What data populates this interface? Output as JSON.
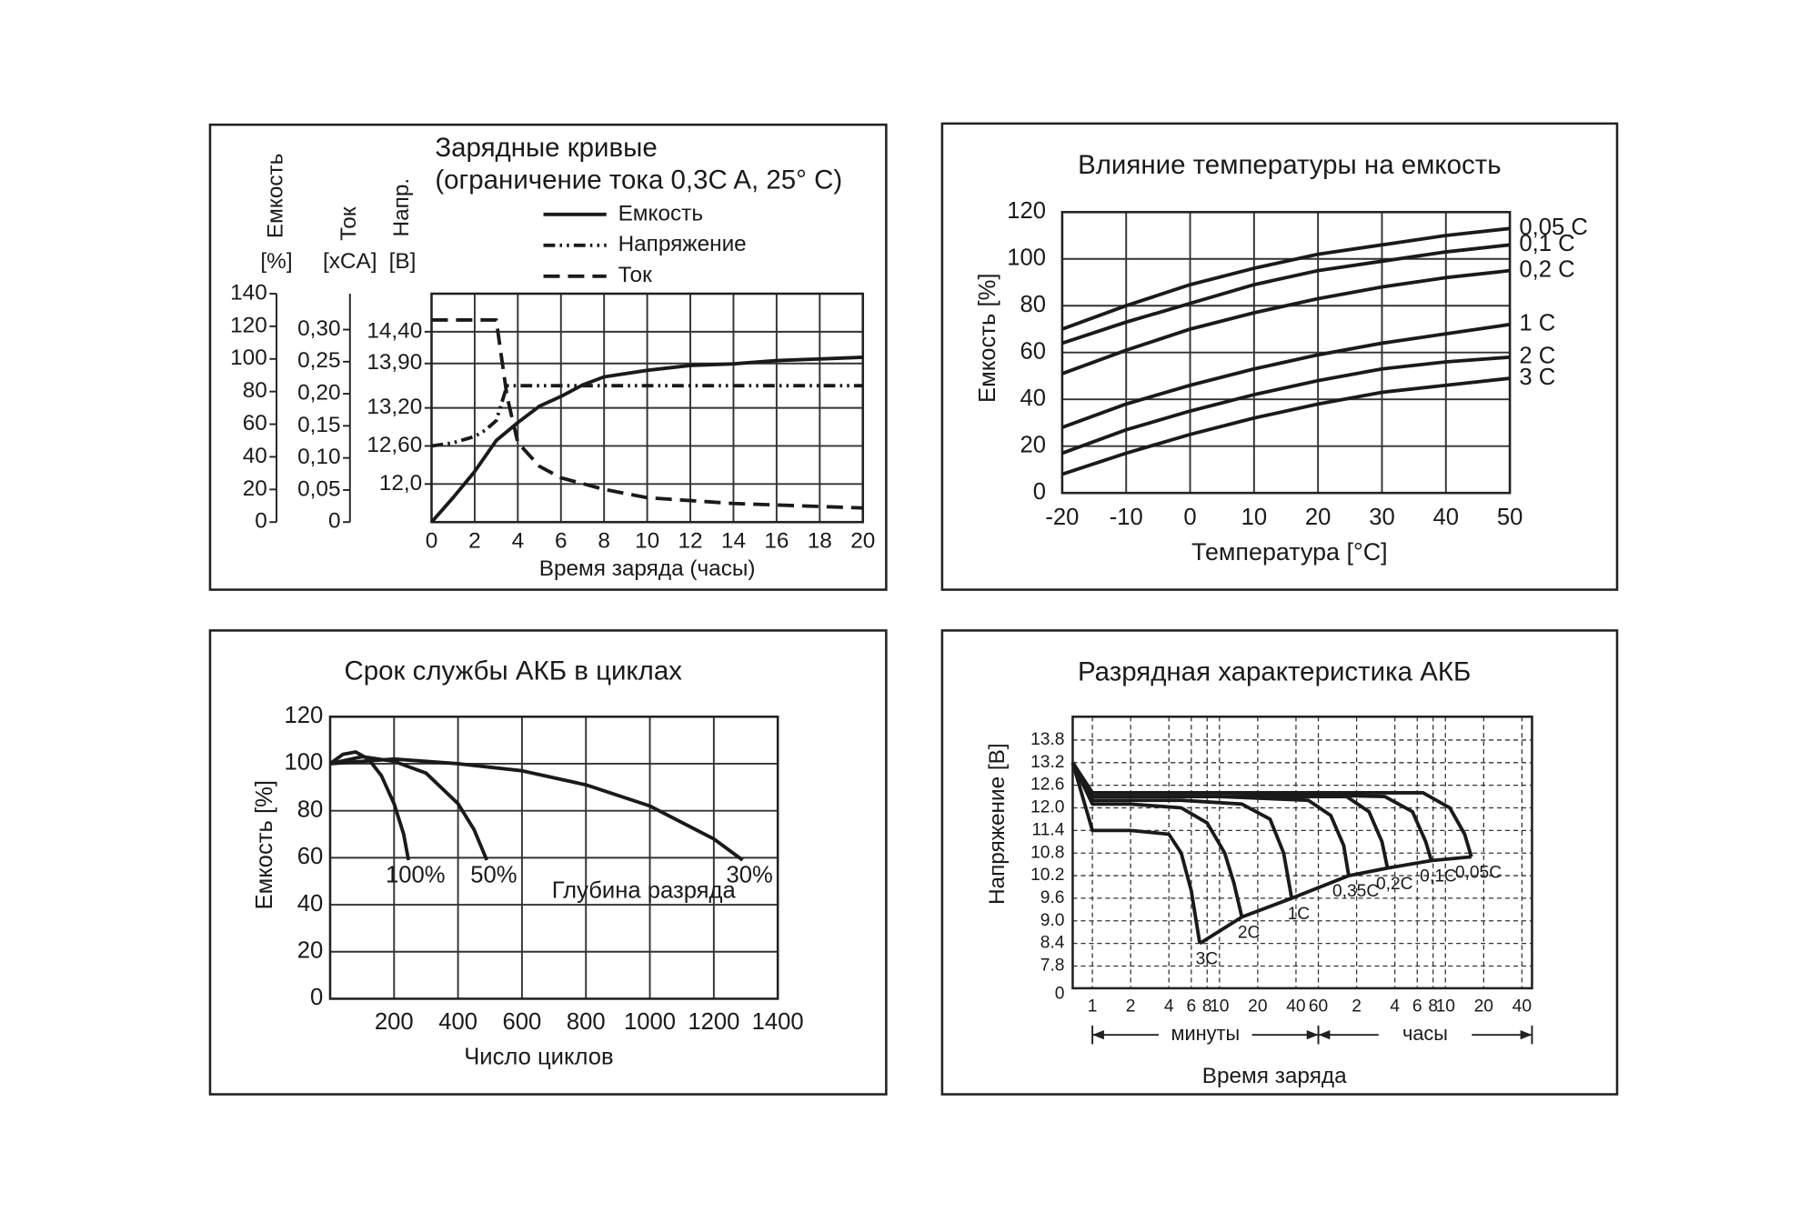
{
  "chart_data": [
    {
      "type": "line",
      "title": "Зарядные кривые",
      "subtitle": "(ограничение тока 0,3C A, 25° C)",
      "xlabel": "Время заряда (часы)",
      "xlim": [
        0,
        20
      ],
      "xticks": [
        0,
        2,
        4,
        6,
        8,
        10,
        12,
        14,
        16,
        18,
        20
      ],
      "ylabel": "Емкость",
      "yunit": "[%]",
      "ylim": [
        0,
        140
      ],
      "yticks": [
        0,
        20,
        40,
        60,
        80,
        100,
        120,
        140
      ],
      "y2label": "Ток",
      "y2unit": "[xCA]",
      "y2lim": [
        0,
        0.356
      ],
      "y2ticks": [
        0,
        {
          "value": 0.05,
          "label": "0,05"
        },
        {
          "value": 0.1,
          "label": "0,10"
        },
        {
          "value": 0.15,
          "label": "0,15"
        },
        {
          "value": 0.2,
          "label": "0,20"
        },
        {
          "value": 0.25,
          "label": "0,25"
        },
        {
          "value": 0.3,
          "label": "0,30"
        }
      ],
      "y3label": "Напр.",
      "y3unit": "[B]",
      "y3lim": [
        11.4,
        15.0
      ],
      "y3ticks": [
        {
          "value": 12,
          "label": "12,0"
        },
        {
          "value": 12.6,
          "label": "12,60"
        },
        {
          "value": 13.2,
          "label": "13,20"
        },
        {
          "value": 13.9,
          "label": "13,90"
        },
        {
          "value": 14.4,
          "label": "14,40"
        }
      ],
      "grid": true,
      "grid_ticks": "y3ticks",
      "legend": "top",
      "series": [
        {
          "name": "Емкость",
          "color": "#1a1a1a",
          "dash": "solid",
          "x": [
            0,
            1,
            2,
            3,
            4,
            5,
            6,
            7,
            8,
            10,
            12,
            14,
            16,
            18,
            20
          ],
          "values": [
            0,
            15,
            31,
            50,
            61,
            71,
            77,
            84,
            89,
            93,
            96,
            97,
            99,
            100,
            101
          ]
        },
        {
          "name": "Напряжение",
          "color": "#1a1a1a",
          "dash": "dash-dot-dot",
          "axis": "y3",
          "x": [
            0,
            1,
            2,
            2.5,
            3,
            3.5,
            4,
            8,
            12,
            16,
            20
          ],
          "values": [
            12.6,
            12.65,
            12.75,
            12.85,
            13.0,
            13.55,
            13.55,
            13.55,
            13.55,
            13.55,
            13.55
          ]
        },
        {
          "name": "Ток",
          "color": "#1a1a1a",
          "dash": "dashed",
          "axis": "y2",
          "x": [
            0,
            1,
            2,
            3,
            3.5,
            4,
            5,
            6,
            8,
            10,
            14,
            20
          ],
          "values": [
            0.315,
            0.315,
            0.315,
            0.315,
            0.196,
            0.124,
            0.087,
            0.069,
            0.051,
            0.038,
            0.029,
            0.022
          ]
        }
      ]
    },
    {
      "type": "line",
      "title": "Влияние температуры на емкость",
      "xlabel": "Температура [°C]",
      "ylabel": "Емкость [%]",
      "xlim": [
        -20,
        50
      ],
      "xticks": [
        -20,
        -10,
        0,
        10,
        20,
        30,
        40,
        50
      ],
      "ylim": [
        0,
        120
      ],
      "yticks": [
        0,
        20,
        40,
        60,
        80,
        100,
        120
      ],
      "grid": true,
      "x": [
        -20,
        -10,
        0,
        10,
        20,
        30,
        40,
        50
      ],
      "series": [
        {
          "name": "0,05 C",
          "color": "#1a1a1a",
          "values": [
            70,
            80,
            89,
            96,
            102,
            106,
            110,
            113
          ]
        },
        {
          "name": "0,1 C",
          "color": "#1a1a1a",
          "values": [
            64,
            73,
            81,
            89,
            95,
            99,
            103,
            106
          ]
        },
        {
          "name": "0,2 C",
          "color": "#1a1a1a",
          "values": [
            51,
            61,
            70,
            77,
            83,
            88,
            92,
            95
          ]
        },
        {
          "name": "1 C",
          "color": "#1a1a1a",
          "values": [
            28,
            38,
            46,
            53,
            59,
            64,
            68,
            72
          ]
        },
        {
          "name": "2 C",
          "color": "#1a1a1a",
          "values": [
            17,
            27,
            35,
            42,
            48,
            53,
            56,
            58
          ]
        },
        {
          "name": "3 C",
          "color": "#1a1a1a",
          "values": [
            8,
            17,
            25,
            32,
            38,
            43,
            46,
            49
          ]
        }
      ]
    },
    {
      "type": "line",
      "title": "Срок службы АКБ в циклах",
      "xlabel": "Число циклов",
      "ylabel": "Емкость [%]",
      "xlim": [
        0,
        1400
      ],
      "xticks": [
        200,
        400,
        600,
        800,
        1000,
        1200,
        1400
      ],
      "ylim": [
        0,
        120
      ],
      "yticks": [
        0,
        20,
        40,
        60,
        80,
        100,
        120
      ],
      "grid": true,
      "annotation": "Глубина разряда",
      "series": [
        {
          "name": "100%",
          "color": "#1a1a1a",
          "x": [
            0,
            40,
            80,
            120,
            160,
            200,
            230,
            245
          ],
          "values": [
            100,
            104,
            105,
            102,
            95,
            83,
            70,
            59
          ]
        },
        {
          "name": "50%",
          "color": "#1a1a1a",
          "x": [
            0,
            100,
            200,
            300,
            400,
            450,
            490
          ],
          "values": [
            100,
            103,
            101,
            96,
            83,
            72,
            59
          ]
        },
        {
          "name": "30%",
          "color": "#1a1a1a",
          "x": [
            0,
            200,
            400,
            600,
            800,
            1000,
            1200,
            1290
          ],
          "values": [
            100,
            102,
            100,
            97,
            91,
            82,
            68,
            59
          ]
        }
      ]
    },
    {
      "type": "line",
      "title": "Разрядная характеристика АКБ",
      "xlabel": "Время заряда",
      "ylabel": "Напряжение [В]",
      "xlog": true,
      "xlim": [
        0.7,
        2880
      ],
      "xticks": [
        1,
        2,
        4,
        6,
        8,
        10,
        20,
        40,
        60,
        {
          "value": 120,
          "label": "2"
        },
        {
          "value": 240,
          "label": "4"
        },
        {
          "value": 360,
          "label": "6"
        },
        {
          "value": 480,
          "label": "8"
        },
        {
          "value": 600,
          "label": "10"
        },
        {
          "value": 1200,
          "label": "20"
        },
        {
          "value": 2400,
          "label": "40"
        }
      ],
      "x_groups": [
        "минуты",
        "часы"
      ],
      "ylim": [
        7.21,
        14.42
      ],
      "yticks": [
        7.8,
        8.4,
        {
          "value": 9,
          "label": "9.0"
        },
        9.6,
        10.2,
        10.8,
        11.4,
        {
          "value": 12,
          "label": "12.0"
        },
        12.6,
        13.2,
        13.8
      ],
      "y_origin_label": "0",
      "grid": "dashed",
      "series": [
        {
          "name": "3C",
          "color": "#1a1a1a",
          "x": [
            0.7,
            1,
            2,
            4,
            5,
            6,
            7
          ],
          "values": [
            13.2,
            11.4,
            11.4,
            11.3,
            10.8,
            9.8,
            8.4
          ]
        },
        {
          "name": "2C",
          "color": "#1a1a1a",
          "x": [
            0.7,
            1,
            2,
            5,
            8,
            11,
            13,
            15
          ],
          "values": [
            13.2,
            12.1,
            12.1,
            12.0,
            11.6,
            10.8,
            10.0,
            9.1
          ]
        },
        {
          "name": "1C",
          "color": "#1a1a1a",
          "x": [
            0.7,
            1,
            5,
            15,
            25,
            32,
            37
          ],
          "values": [
            13.2,
            12.2,
            12.2,
            12.1,
            11.7,
            10.8,
            9.6
          ]
        },
        {
          "name": "0,35C",
          "color": "#1a1a1a",
          "x": [
            0.7,
            1,
            10,
            50,
            75,
            95,
            104
          ],
          "values": [
            13.2,
            12.3,
            12.3,
            12.2,
            11.8,
            11.0,
            10.2
          ]
        },
        {
          "name": "0,2C",
          "color": "#1a1a1a",
          "x": [
            0.7,
            1,
            10,
            100,
            150,
            190,
            210
          ],
          "values": [
            13.2,
            12.3,
            12.3,
            12.3,
            11.9,
            11.1,
            10.4
          ]
        },
        {
          "name": "0,1C",
          "color": "#1a1a1a",
          "x": [
            0.7,
            1,
            10,
            200,
            330,
            420,
            465
          ],
          "values": [
            13.2,
            12.4,
            12.4,
            12.3,
            11.9,
            11.1,
            10.6
          ]
        },
        {
          "name": "0,05C",
          "color": "#1a1a1a",
          "x": [
            0.7,
            1,
            10,
            400,
            650,
            850,
            960
          ],
          "values": [
            13.2,
            12.4,
            12.4,
            12.4,
            12.0,
            11.3,
            10.7
          ]
        }
      ]
    }
  ]
}
